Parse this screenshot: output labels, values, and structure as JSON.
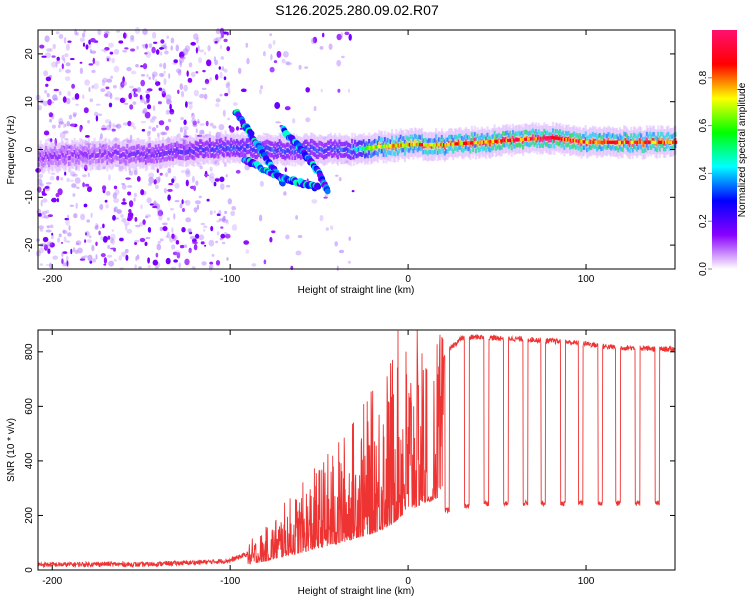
{
  "title": "S126.2025.280.09.02.R07",
  "chart_data": [
    {
      "type": "heatmap",
      "xlabel": "Height of straight line (km)",
      "ylabel": "Frequency (Hz)",
      "xlim": [
        -208,
        150
      ],
      "ylim": [
        -25,
        25
      ],
      "xticks": [
        -200,
        -100,
        0,
        100
      ],
      "xtick_labels": [
        "-200",
        "-100",
        "0",
        "100"
      ],
      "yticks": [
        -20,
        -10,
        0,
        10,
        20
      ],
      "ytick_labels": [
        "-20",
        "-10",
        "0",
        "10",
        "20"
      ],
      "colorbar": {
        "label": "Normalized spectral amplitude",
        "range": [
          0,
          1
        ],
        "ticks": [
          0.0,
          0.2,
          0.4,
          0.6,
          0.8
        ],
        "tick_labels": [
          "0.0",
          "0.2",
          "0.4",
          "0.6",
          "0.8"
        ],
        "stops": [
          "#ffffff",
          "#8a00ff",
          "#0000ff",
          "#00ffff",
          "#00ff00",
          "#ffff00",
          "#ff0000",
          "#ff1070"
        ]
      },
      "ridge": {
        "description_points_x": [
          -205,
          -180,
          -150,
          -120,
          -100,
          -80,
          -60,
          -40,
          -30,
          -20,
          0,
          20,
          40,
          60,
          80,
          100,
          120,
          150
        ],
        "description_points_y": [
          -1.5,
          -1,
          -1,
          0,
          0.5,
          0,
          0,
          0,
          0,
          0.5,
          1,
          1,
          1.5,
          2,
          2.5,
          1.5,
          1.5,
          1.5
        ],
        "amplitude": [
          0.15,
          0.15,
          0.2,
          0.25,
          0.3,
          0.3,
          0.3,
          0.3,
          0.4,
          0.7,
          0.8,
          0.8,
          0.85,
          0.9,
          0.95,
          0.85,
          0.85,
          0.85
        ]
      },
      "branches": [
        {
          "x": [
            -97,
            -88,
            -78,
            -70
          ],
          "y": [
            8,
            3,
            -3,
            -7
          ]
        },
        {
          "x": [
            -92,
            -82,
            -70,
            -60,
            -50
          ],
          "y": [
            -2,
            -4,
            -6,
            -7,
            -8
          ]
        },
        {
          "x": [
            -70,
            -60,
            -50,
            -45
          ],
          "y": [
            4,
            0,
            -5,
            -9
          ]
        }
      ]
    },
    {
      "type": "line",
      "xlabel": "Height of straight line (km)",
      "ylabel": "SNR (10 * v/v)",
      "xlim": [
        -208,
        150
      ],
      "ylim": [
        0,
        880
      ],
      "xticks": [
        -200,
        -100,
        0,
        100
      ],
      "xtick_labels": [
        "-200",
        "-100",
        "0",
        "100"
      ],
      "yticks": [
        0,
        200,
        400,
        600,
        800
      ],
      "ytick_labels": [
        "0",
        "200",
        "400",
        "600",
        "800"
      ],
      "color": "#ee3333",
      "series": [
        {
          "name": "SNR",
          "x": [
            -208,
            -190,
            -170,
            -150,
            -130,
            -110,
            -100,
            -90,
            -80,
            -70,
            -60,
            -50,
            -40,
            -30,
            -20,
            -10,
            0,
            10,
            15,
            20,
            25,
            30,
            40,
            50,
            60,
            70,
            80,
            90,
            100,
            110,
            120,
            130,
            140,
            150
          ],
          "y": [
            20,
            20,
            22,
            20,
            25,
            30,
            35,
            60,
            90,
            140,
            180,
            230,
            270,
            330,
            380,
            460,
            620,
            700,
            740,
            780,
            820,
            850,
            855,
            850,
            848,
            845,
            840,
            835,
            830,
            820,
            815,
            815,
            810,
            810
          ]
        }
      ],
      "dropouts": {
        "x": [
          12,
          22,
          33,
          44,
          55,
          66,
          76,
          87,
          97,
          108,
          118,
          129,
          140
        ],
        "y": [
          260,
          220,
          235,
          245,
          245,
          245,
          245,
          245,
          245,
          245,
          245,
          245,
          245
        ]
      }
    }
  ]
}
